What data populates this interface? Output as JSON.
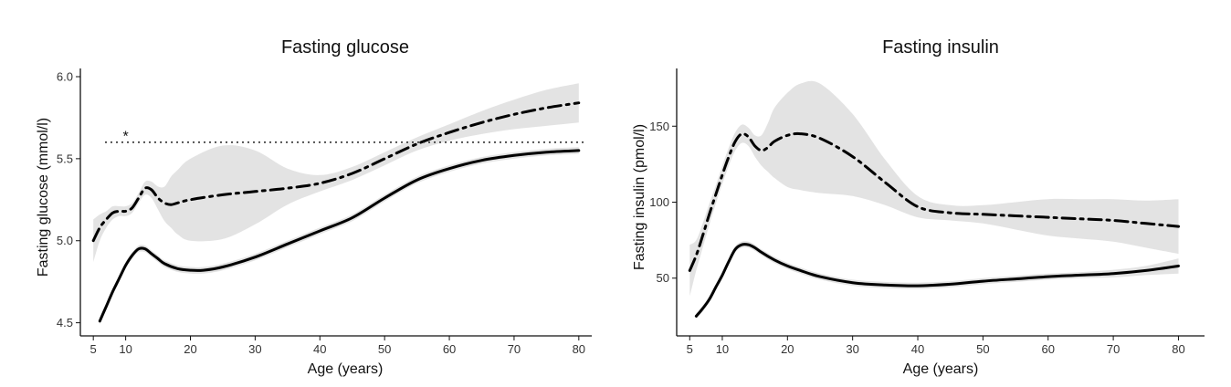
{
  "chart_data": [
    {
      "type": "line",
      "title": "Fasting glucose",
      "xlabel": "Age (years)",
      "ylabel": "Fasting glucose (mmol/l)",
      "xlim": [
        3,
        82
      ],
      "ylim": [
        4.42,
        6.05
      ],
      "xticks": [
        5,
        10,
        20,
        30,
        40,
        50,
        60,
        70,
        80
      ],
      "yticks": [
        4.5,
        5.0,
        5.5,
        6.0
      ],
      "ytick_labels": [
        "4.5",
        "5.0",
        "5.5",
        "6.0"
      ],
      "reference_line": 5.6,
      "annotation": {
        "text": "*",
        "x": 10,
        "y": 5.64
      },
      "grid": false,
      "series": [
        {
          "style": "solid",
          "x": [
            6,
            7,
            8,
            9,
            10,
            11,
            12,
            13,
            14,
            15,
            16,
            18,
            20,
            22,
            25,
            30,
            35,
            40,
            45,
            50,
            55,
            60,
            65,
            70,
            75,
            80
          ],
          "y": [
            4.51,
            4.6,
            4.69,
            4.77,
            4.85,
            4.91,
            4.95,
            4.95,
            4.92,
            4.89,
            4.86,
            4.83,
            4.82,
            4.82,
            4.84,
            4.9,
            4.98,
            5.06,
            5.14,
            5.26,
            5.37,
            5.44,
            5.49,
            5.52,
            5.54,
            5.55
          ],
          "lower": [
            4.49,
            4.58,
            4.67,
            4.75,
            4.83,
            4.89,
            4.93,
            4.93,
            4.9,
            4.87,
            4.84,
            4.81,
            4.8,
            4.8,
            4.82,
            4.88,
            4.96,
            5.04,
            5.12,
            5.24,
            5.35,
            5.42,
            5.47,
            5.5,
            5.52,
            5.53
          ],
          "upper": [
            4.53,
            4.62,
            4.71,
            4.79,
            4.87,
            4.93,
            4.97,
            4.97,
            4.94,
            4.91,
            4.88,
            4.85,
            4.84,
            4.84,
            4.86,
            4.92,
            5.0,
            5.08,
            5.16,
            5.28,
            5.39,
            5.46,
            5.51,
            5.54,
            5.56,
            5.57
          ]
        },
        {
          "style": "dashdot",
          "x": [
            5,
            6,
            7,
            8,
            9,
            10,
            11,
            12,
            13,
            14,
            15,
            16,
            17,
            18,
            20,
            25,
            30,
            35,
            40,
            45,
            50,
            55,
            60,
            65,
            70,
            75,
            80
          ],
          "y": [
            5.0,
            5.08,
            5.13,
            5.17,
            5.18,
            5.18,
            5.2,
            5.26,
            5.32,
            5.31,
            5.26,
            5.23,
            5.22,
            5.23,
            5.25,
            5.28,
            5.3,
            5.32,
            5.35,
            5.41,
            5.5,
            5.59,
            5.66,
            5.72,
            5.77,
            5.81,
            5.84
          ],
          "lower": [
            4.87,
            5.0,
            5.08,
            5.13,
            5.15,
            5.15,
            5.17,
            5.23,
            5.28,
            5.26,
            5.19,
            5.12,
            5.08,
            5.04,
            5.0,
            5.01,
            5.1,
            5.22,
            5.3,
            5.37,
            5.46,
            5.55,
            5.61,
            5.65,
            5.68,
            5.7,
            5.72
          ],
          "upper": [
            5.13,
            5.16,
            5.18,
            5.21,
            5.21,
            5.21,
            5.23,
            5.29,
            5.36,
            5.36,
            5.33,
            5.33,
            5.39,
            5.43,
            5.5,
            5.58,
            5.55,
            5.44,
            5.4,
            5.45,
            5.54,
            5.63,
            5.71,
            5.79,
            5.86,
            5.92,
            5.96
          ]
        }
      ]
    },
    {
      "type": "line",
      "title": "Fasting insulin",
      "xlabel": "Age (years)",
      "ylabel": "Fasting insulin (pmol/l)",
      "xlim": [
        3,
        84
      ],
      "ylim": [
        12,
        188
      ],
      "xticks": [
        5,
        10,
        20,
        30,
        40,
        50,
        60,
        70,
        80
      ],
      "yticks": [
        50,
        100,
        150
      ],
      "ytick_labels": [
        "50",
        "100",
        "150"
      ],
      "grid": false,
      "series": [
        {
          "style": "solid",
          "x": [
            6,
            7,
            8,
            9,
            10,
            11,
            12,
            13,
            14,
            15,
            16,
            18,
            20,
            22,
            25,
            30,
            35,
            40,
            45,
            50,
            55,
            60,
            65,
            70,
            75,
            80
          ],
          "y": [
            25,
            30,
            36,
            44,
            52,
            61,
            69,
            72,
            72,
            70,
            67,
            62,
            58,
            55,
            51,
            47,
            45.5,
            45,
            46,
            48,
            49.5,
            51,
            52,
            53,
            55,
            58
          ],
          "lower": [
            23,
            28,
            34,
            42,
            50,
            59,
            67,
            70,
            70,
            68,
            65,
            60,
            56,
            53,
            49,
            45,
            43.5,
            43,
            44,
            46,
            47.5,
            49,
            50,
            50.5,
            52,
            53
          ],
          "upper": [
            27,
            32,
            38,
            46,
            54,
            63,
            71,
            74,
            74,
            72,
            69,
            64,
            60,
            57,
            53,
            49,
            47.5,
            47,
            48,
            50,
            51.5,
            53,
            54,
            55.5,
            58,
            63
          ]
        },
        {
          "style": "dashdot",
          "x": [
            5,
            6,
            7,
            8,
            9,
            10,
            11,
            12,
            13,
            14,
            15,
            16,
            17,
            18,
            20,
            22,
            25,
            30,
            35,
            40,
            45,
            50,
            55,
            60,
            65,
            70,
            75,
            80
          ],
          "y": [
            55,
            65,
            78,
            92,
            105,
            118,
            130,
            140,
            145,
            143,
            137,
            134,
            136,
            140,
            144,
            145,
            142,
            130,
            113,
            97,
            93,
            92,
            91,
            90,
            89,
            88,
            86,
            84
          ],
          "lower": [
            38,
            55,
            70,
            85,
            99,
            112,
            124,
            134,
            139,
            137,
            130,
            124,
            120,
            116,
            110,
            108,
            106,
            104,
            98,
            90,
            88,
            86,
            82,
            78,
            76,
            74,
            70,
            66
          ],
          "upper": [
            72,
            75,
            86,
            99,
            111,
            124,
            136,
            146,
            151,
            149,
            144,
            144,
            152,
            162,
            172,
            178,
            178,
            158,
            128,
            104,
            98,
            98,
            100,
            102,
            102,
            102,
            101,
            102
          ]
        }
      ]
    }
  ]
}
